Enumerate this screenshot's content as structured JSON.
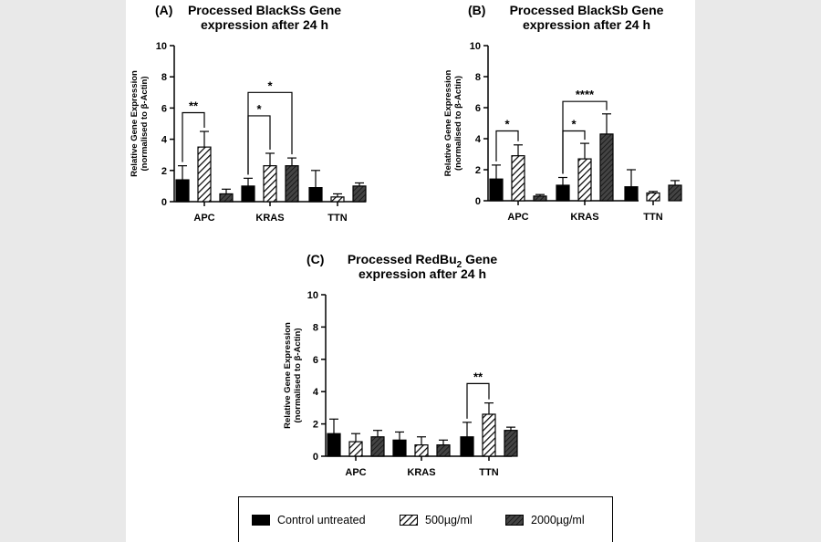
{
  "chart_data": [
    {
      "type": "bar",
      "panel": "(A)",
      "title": "Processed BlackSs Gene",
      "subtitle": "expression after 24 h",
      "ylabel_line1": "Relative Gene Expression",
      "ylabel_line2": "(normalised to β-Actin)",
      "ylim": [
        0,
        10
      ],
      "yticks": [
        0,
        2,
        4,
        6,
        8,
        10
      ],
      "categories": [
        "APC",
        "KRAS",
        "TTN"
      ],
      "series": [
        {
          "name": "Control untreated",
          "values": [
            1.4,
            1.0,
            0.9
          ],
          "errors": [
            0.9,
            0.5,
            1.1
          ]
        },
        {
          "name": "500µg/ml",
          "values": [
            3.5,
            2.3,
            0.3
          ],
          "errors": [
            1.0,
            0.8,
            0.2
          ]
        },
        {
          "name": "2000µg/ml",
          "values": [
            0.5,
            2.3,
            1.0
          ],
          "errors": [
            0.3,
            0.5,
            0.2
          ]
        }
      ],
      "significance": [
        {
          "category": 0,
          "from": 0,
          "to": 1,
          "label": "**",
          "y": 5.7
        },
        {
          "category": 1,
          "from": 0,
          "to": 1,
          "label": "*",
          "y": 5.5
        },
        {
          "category": 1,
          "from": 0,
          "to": 2,
          "label": "*",
          "y": 7.0
        }
      ]
    },
    {
      "type": "bar",
      "panel": "(B)",
      "title": "Processed BlackSb Gene",
      "subtitle": "expression after 24 h",
      "ylabel_line1": "Relative Gene Expression",
      "ylabel_line2": "(normalised to β-Actin)",
      "ylim": [
        0,
        10
      ],
      "yticks": [
        0,
        2,
        4,
        6,
        8,
        10
      ],
      "categories": [
        "APC",
        "KRAS",
        "TTN"
      ],
      "series": [
        {
          "name": "Control untreated",
          "values": [
            1.4,
            1.0,
            0.9
          ],
          "errors": [
            0.9,
            0.5,
            1.1
          ]
        },
        {
          "name": "500µg/ml",
          "values": [
            2.9,
            2.7,
            0.5
          ],
          "errors": [
            0.7,
            1.0,
            0.1
          ]
        },
        {
          "name": "2000µg/ml",
          "values": [
            0.3,
            4.3,
            1.0
          ],
          "errors": [
            0.1,
            1.3,
            0.3
          ]
        }
      ],
      "significance": [
        {
          "category": 0,
          "from": 0,
          "to": 1,
          "label": "*",
          "y": 4.5
        },
        {
          "category": 1,
          "from": 0,
          "to": 1,
          "label": "*",
          "y": 4.5
        },
        {
          "category": 1,
          "from": 0,
          "to": 2,
          "label": "****",
          "y": 6.4
        }
      ]
    },
    {
      "type": "bar",
      "panel": "(C)",
      "title": "Processed RedBu",
      "title_sub": "2",
      "title_suffix": " Gene",
      "subtitle": "expression after 24 h",
      "ylabel_line1": "Relative Gene Expression",
      "ylabel_line2": "(normalised to β-Actin)",
      "ylim": [
        0,
        10
      ],
      "yticks": [
        0,
        2,
        4,
        6,
        8,
        10
      ],
      "categories": [
        "APC",
        "KRAS",
        "TTN"
      ],
      "series": [
        {
          "name": "Control untreated",
          "values": [
            1.4,
            1.0,
            1.2
          ],
          "errors": [
            0.9,
            0.5,
            0.9
          ]
        },
        {
          "name": "500µg/ml",
          "values": [
            0.9,
            0.7,
            2.6
          ],
          "errors": [
            0.5,
            0.5,
            0.7
          ]
        },
        {
          "name": "2000µg/ml",
          "values": [
            1.2,
            0.7,
            1.6
          ],
          "errors": [
            0.4,
            0.3,
            0.2
          ]
        }
      ],
      "significance": [
        {
          "category": 2,
          "from": 0,
          "to": 1,
          "label": "**",
          "y": 4.5
        }
      ]
    }
  ],
  "legend": {
    "entries": [
      {
        "label": "Control untreated",
        "pattern": "solid"
      },
      {
        "label": "500µg/ml",
        "pattern": "hatch-light"
      },
      {
        "label": "2000µg/ml",
        "pattern": "hatch-dark"
      }
    ]
  }
}
